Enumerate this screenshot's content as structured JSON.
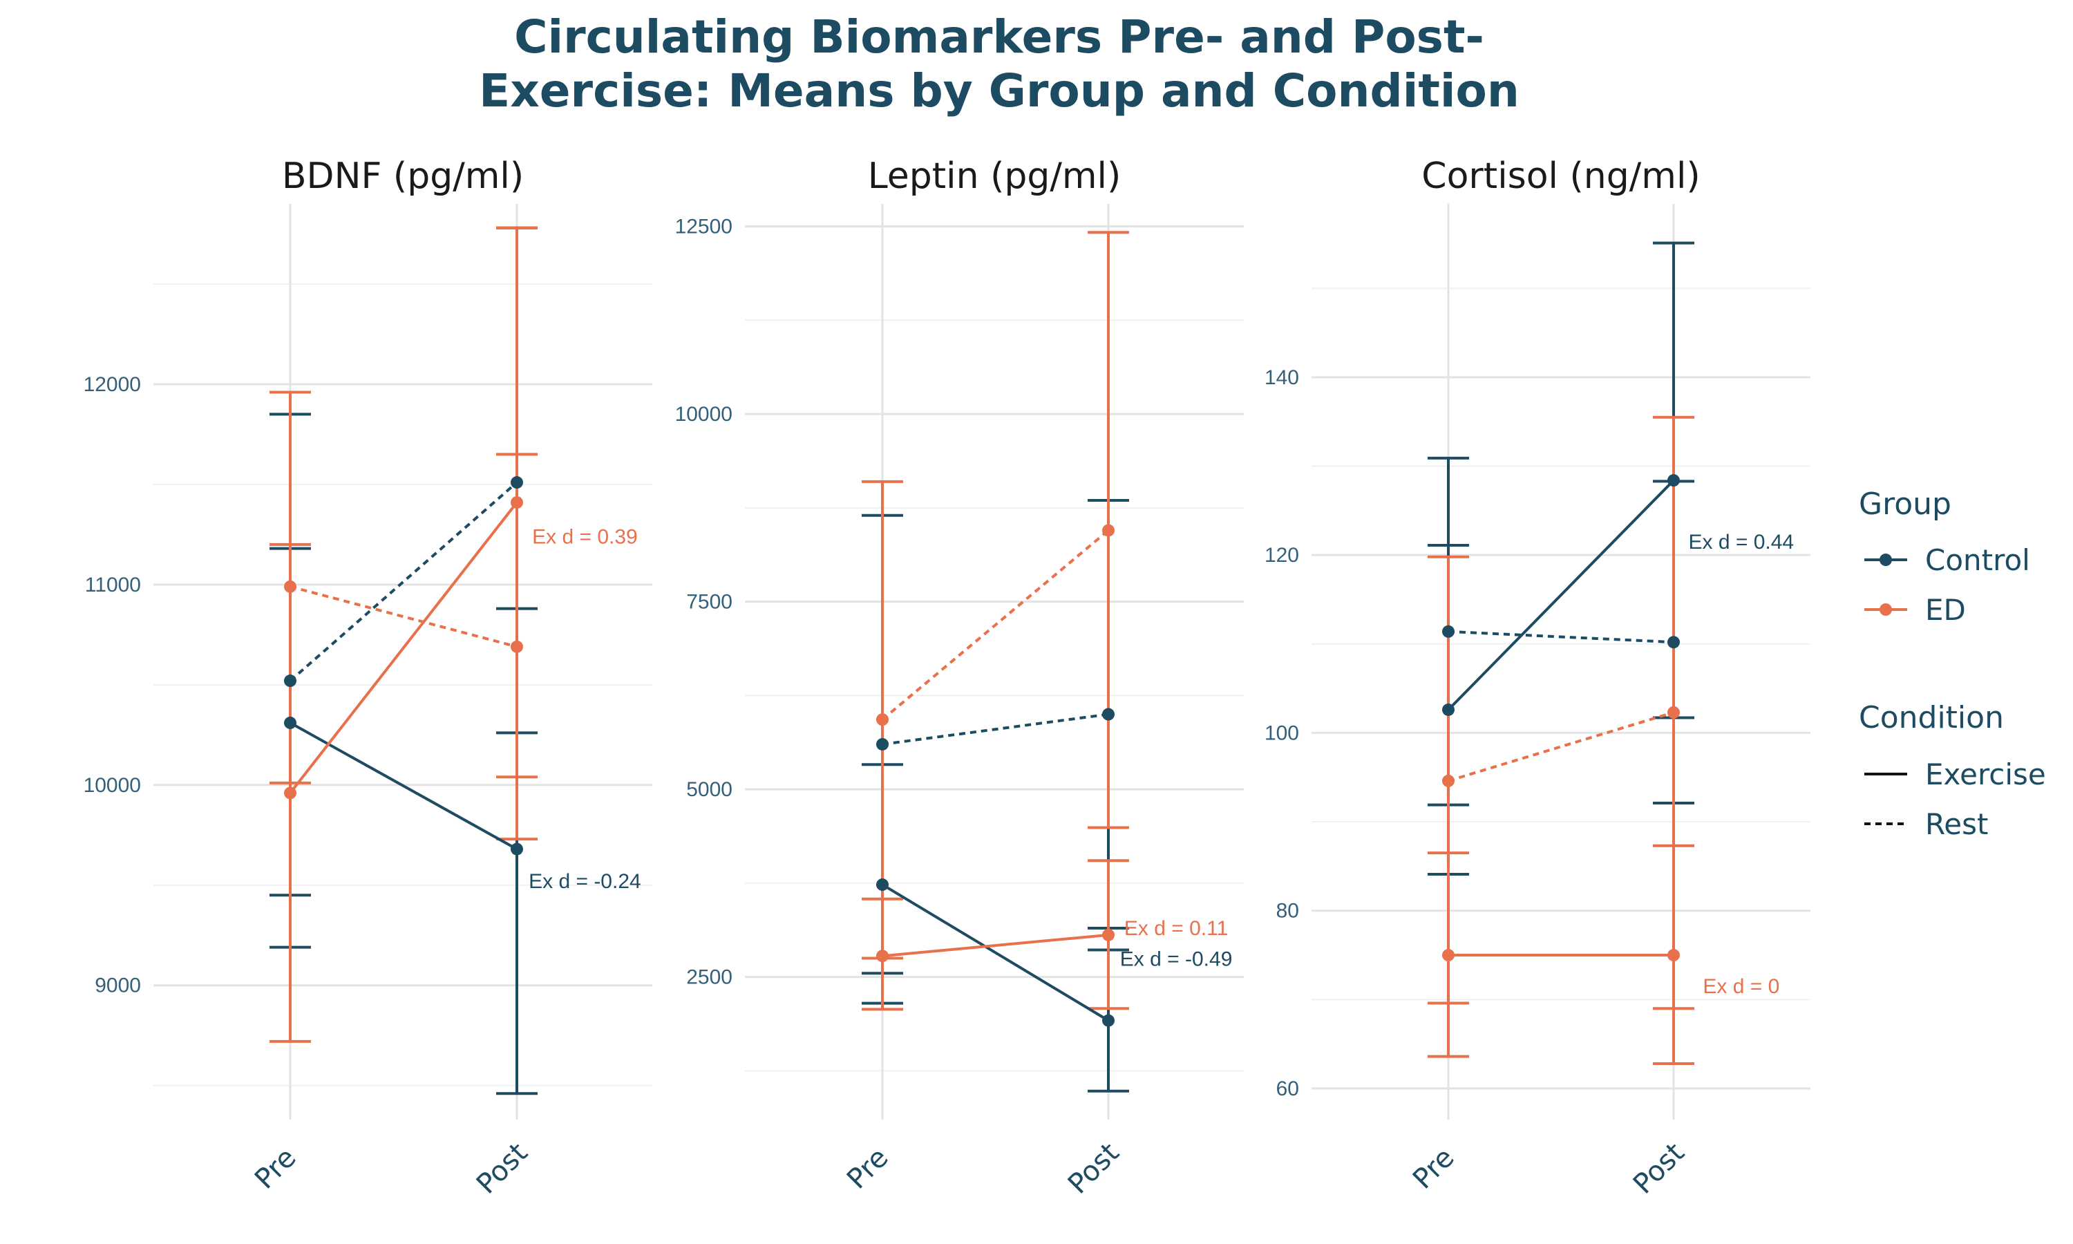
{
  "chart_data": {
    "type": "line",
    "title_lines": [
      "Circulating Biomarkers Pre- and Post-",
      "Exercise: Means by Group and Condition"
    ],
    "colors": {
      "Control": "#1d4b62",
      "ED": "#e8704a"
    },
    "legend": {
      "position": "right",
      "group_title": "Group",
      "group_items": [
        "Control",
        "ED"
      ],
      "condition_title": "Condition",
      "condition_items": [
        "Exercise",
        "Rest"
      ]
    },
    "panels": [
      {
        "title": "BDNF (pg/ml)",
        "categories": [
          "Pre",
          "Post"
        ],
        "ylim": [
          8330,
          12900
        ],
        "yticks": [
          9000,
          10000,
          11000,
          12000
        ],
        "yminor": [
          8500,
          9500,
          10500,
          11500,
          12500
        ],
        "series": [
          {
            "group": "Control",
            "condition": "Exercise",
            "values": [
              10310,
              9680
            ],
            "lower": [
              9190,
              8460
            ],
            "upper": [
              11180,
              10880
            ]
          },
          {
            "group": "Control",
            "condition": "Rest",
            "values": [
              10520,
              11510
            ],
            "lower": [
              9450,
              10260
            ],
            "upper": [
              11850,
              12780
            ]
          },
          {
            "group": "ED",
            "condition": "Exercise",
            "values": [
              9960,
              11410
            ],
            "lower": [
              8720,
              10040
            ],
            "upper": [
              11200,
              12780
            ]
          },
          {
            "group": "ED",
            "condition": "Rest",
            "values": [
              10990,
              10690
            ],
            "lower": [
              10010,
              9730
            ],
            "upper": [
              11960,
              11650
            ]
          }
        ],
        "annotations": [
          {
            "text": "Ex d = 0.39",
            "group": "ED",
            "x": 1.3,
            "y": 11240
          },
          {
            "text": "Ex d = -0.24",
            "group": "Control",
            "x": 1.3,
            "y": 9520
          }
        ]
      },
      {
        "title": "Leptin (pg/ml)",
        "categories": [
          "Pre",
          "Post"
        ],
        "ylim": [
          600,
          12800
        ],
        "yticks": [
          2500,
          5000,
          7500,
          10000,
          12500
        ],
        "yminor": [
          1250,
          3750,
          6250,
          8750,
          11250
        ],
        "series": [
          {
            "group": "Control",
            "condition": "Exercise",
            "values": [
              3730,
              1920
            ],
            "lower": [
              2150,
              980
            ],
            "upper": [
              5330,
              2860
            ]
          },
          {
            "group": "Control",
            "condition": "Rest",
            "values": [
              5600,
              6000
            ],
            "lower": [
              2550,
              3150
            ],
            "upper": [
              8650,
              8850
            ]
          },
          {
            "group": "ED",
            "condition": "Exercise",
            "values": [
              2780,
              3060
            ],
            "lower": [
              2070,
              2080
            ],
            "upper": [
              3540,
              4050
            ]
          },
          {
            "group": "ED",
            "condition": "Rest",
            "values": [
              5930,
              8450
            ],
            "lower": [
              2750,
              4490
            ],
            "upper": [
              9100,
              12420
            ]
          }
        ],
        "annotations": [
          {
            "text": "Ex d = 0.11",
            "group": "ED",
            "x": 1.3,
            "y": 3150
          },
          {
            "text": "Ex d = -0.49",
            "group": "Control",
            "x": 1.3,
            "y": 2740
          }
        ]
      },
      {
        "title": "Cortisol (ng/ml)",
        "categories": [
          "Pre",
          "Post"
        ],
        "ylim": [
          56.5,
          159.5
        ],
        "yticks": [
          60,
          80,
          100,
          120,
          140
        ],
        "yminor": [
          70,
          90,
          110,
          130,
          150
        ],
        "series": [
          {
            "group": "Control",
            "condition": "Exercise",
            "values": [
              102.6,
              128.4
            ],
            "lower": [
              84.1,
              101.7
            ],
            "upper": [
              121.1,
              155.1
            ]
          },
          {
            "group": "Control",
            "condition": "Rest",
            "values": [
              111.4,
              110.2
            ],
            "lower": [
              91.9,
              92.1
            ],
            "upper": [
              130.9,
              128.3
            ]
          },
          {
            "group": "ED",
            "condition": "Exercise",
            "values": [
              75.0,
              75.0
            ],
            "lower": [
              63.6,
              62.8
            ],
            "upper": [
              86.5,
              87.3
            ]
          },
          {
            "group": "ED",
            "condition": "Rest",
            "values": [
              94.6,
              102.3
            ],
            "lower": [
              69.6,
              69.0
            ],
            "upper": [
              119.8,
              135.5
            ]
          }
        ],
        "annotations": [
          {
            "text": "Ex d = 0.44",
            "group": "Control",
            "x": 1.3,
            "y": 121.5
          },
          {
            "text": "Ex d = 0",
            "group": "ED",
            "x": 1.3,
            "y": 71.5
          }
        ]
      }
    ]
  }
}
